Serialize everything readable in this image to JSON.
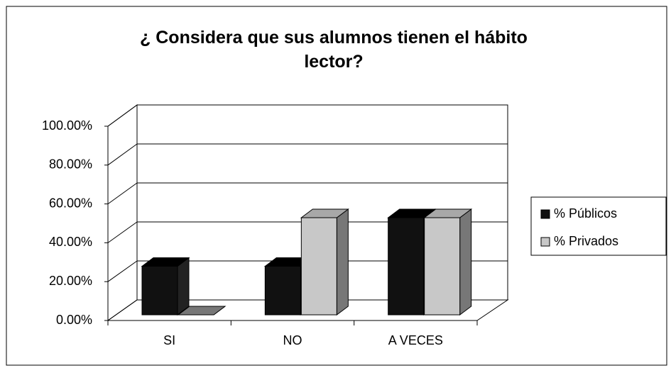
{
  "chart_data": {
    "type": "bar3d",
    "title": "¿ Considera que sus alumnos tienen el hábito lector?",
    "categories": [
      "SI",
      "NO",
      "A VECES"
    ],
    "series": [
      {
        "name": "% Públicos",
        "color": "#111111",
        "values": [
          25,
          25,
          50
        ]
      },
      {
        "name": "% Privados",
        "color": "#c8c8c8",
        "values": [
          0,
          50,
          50
        ]
      }
    ],
    "ylim": [
      0,
      100
    ],
    "yticks": [
      {
        "value": 0,
        "label": "0.00%"
      },
      {
        "value": 20,
        "label": "20.00%"
      },
      {
        "value": 40,
        "label": "40.00%"
      },
      {
        "value": 60,
        "label": "60.00%"
      },
      {
        "value": 80,
        "label": "80.00%"
      },
      {
        "value": 100,
        "label": "100.00%"
      }
    ],
    "grid": true,
    "legend": "right"
  }
}
